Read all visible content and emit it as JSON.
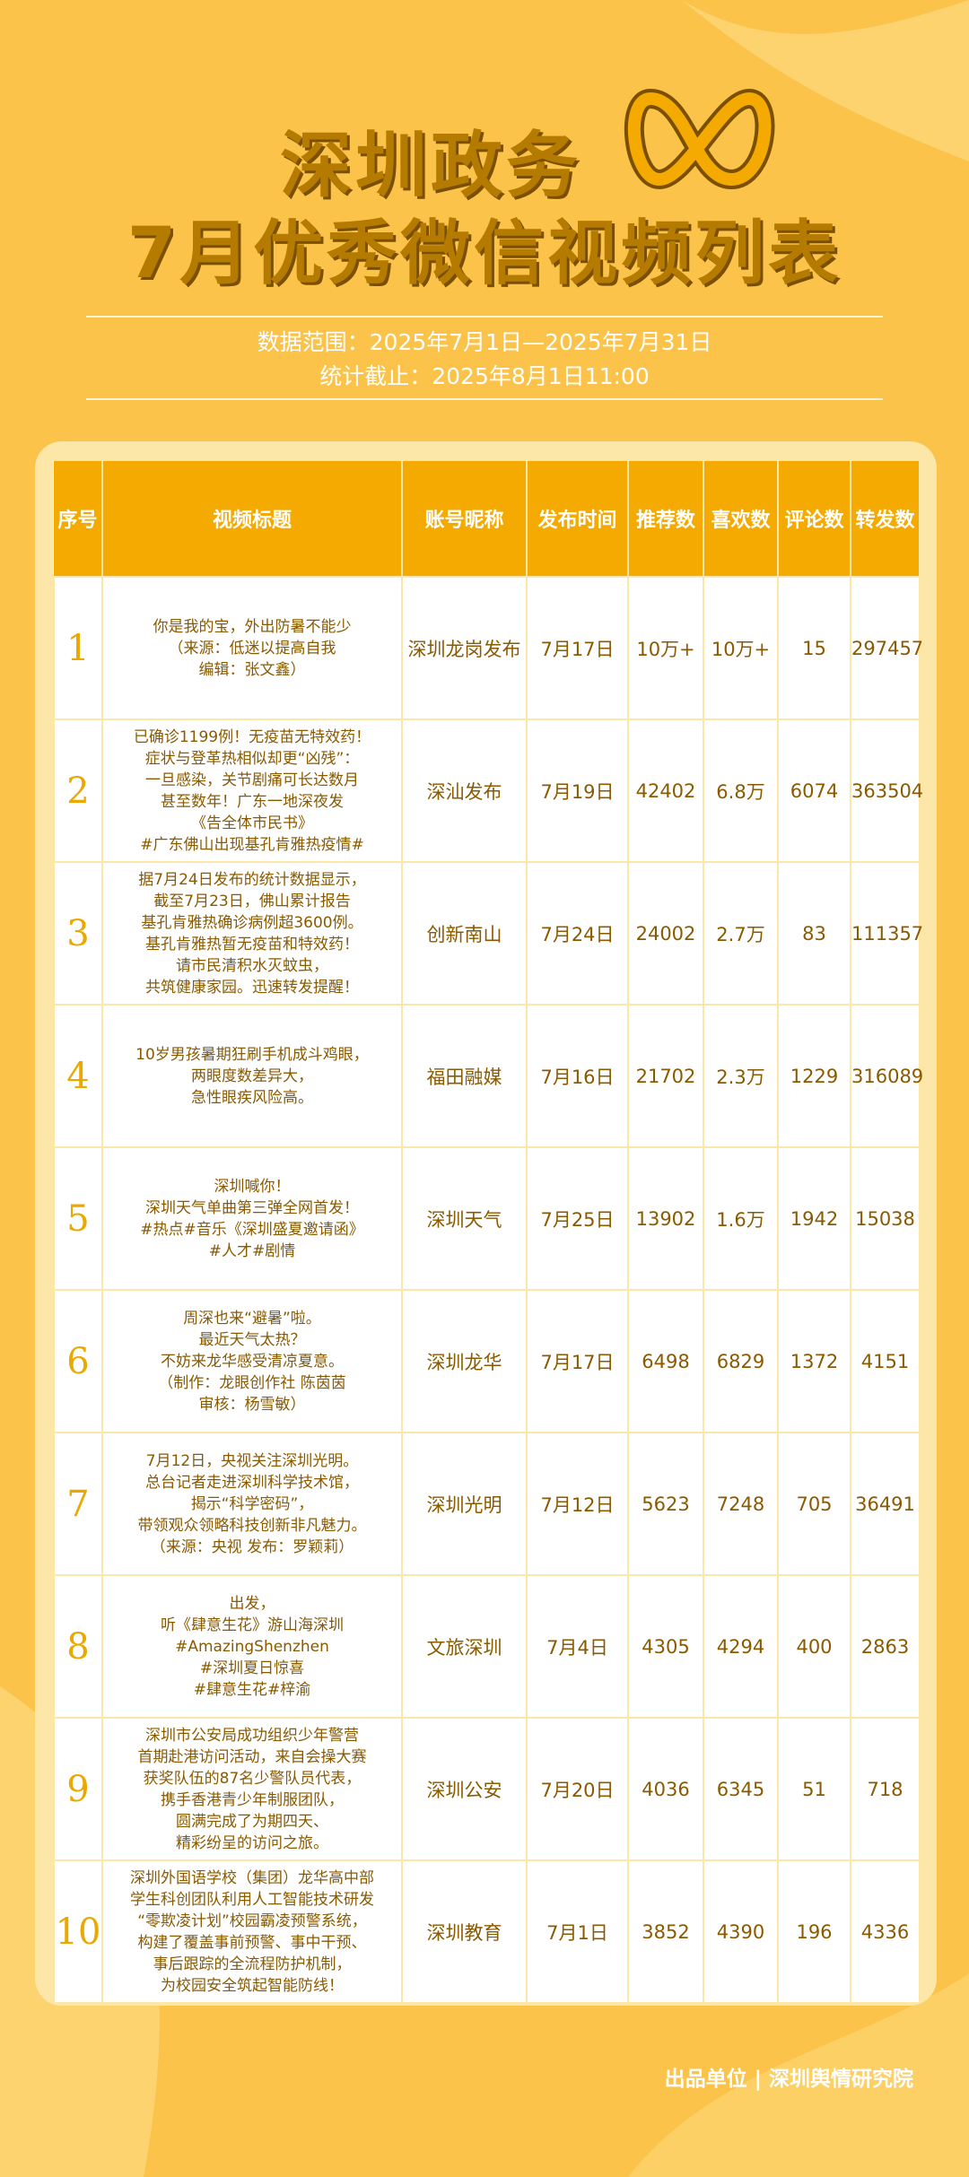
{
  "header": {
    "title_line1": "深圳政务",
    "title_line2": "7月优秀微信视频列表",
    "date_range": "数据范围：2025年7月1日—2025年7月31日",
    "cutoff": "统计截止：2025年8月1日11:00"
  },
  "table": {
    "columns": [
      "序号",
      "视频标题",
      "账号昵称",
      "发布时间",
      "推荐数",
      "喜欢数",
      "评论数",
      "转发数"
    ],
    "rows": [
      [
        1,
        "你是我的宝，外出防暑不能少\n（来源：低迷以提高自我\n编辑：张文鑫）",
        "深圳龙岗发布",
        "7月17日",
        "10万+",
        "10万+",
        15,
        297457
      ],
      [
        2,
        "已确诊1199例！无疫苗无特效药！\n症状与登革热相似却更“凶残”：\n一旦感染，关节剧痛可长达数月\n甚至数年！广东一地深夜发\n《告全体市民书》\n#广东佛山出现基孔肯雅热疫情#",
        "深汕发布",
        "7月19日",
        42402,
        "6.8万",
        6074,
        363504
      ],
      [
        3,
        "据7月24日发布的统计数据显示，\n截至7月23日，佛山累计报告\n基孔肯雅热确诊病例超3600例。\n基孔肯雅热暂无疫苗和特效药！\n请市民清积水灭蚊虫，\n共筑健康家园。迅速转发提醒！",
        "创新南山",
        "7月24日",
        24002,
        "2.7万",
        83,
        111357
      ],
      [
        4,
        "10岁男孩暑期狂刷手机成斗鸡眼，\n两眼度数差异大，\n急性眼疾风险高。",
        "福田融媒",
        "7月16日",
        21702,
        "2.3万",
        1229,
        316089
      ],
      [
        5,
        "深圳喊你！\n深圳天气单曲第三弹全网首发！\n#热点#音乐《深圳盛夏邀请函》\n#人才#剧情",
        "深圳天气",
        "7月25日",
        13902,
        "1.6万",
        1942,
        15038
      ],
      [
        6,
        "周深也来“避暑”啦。\n最近天气太热？\n不妨来龙华感受清凉夏意。\n（制作：龙眼创作社 陈茵茵\n审核：杨雪敏）",
        "深圳龙华",
        "7月17日",
        6498,
        6829,
        1372,
        4151
      ],
      [
        7,
        "7月12日，央视关注深圳光明。\n总台记者走进深圳科学技术馆，\n揭示“科学密码”，\n带领观众领略科技创新非凡魅力。\n（来源：央视 发布：罗颖莉）",
        "深圳光明",
        "7月12日",
        5623,
        7248,
        705,
        36491
      ],
      [
        8,
        "出发，\n听《肆意生花》游山海深圳\n#AmazingShenzhen\n#深圳夏日惊喜\n#肆意生花#梓渝",
        "文旅深圳",
        "7月4日",
        4305,
        4294,
        400,
        2863
      ],
      [
        9,
        "深圳市公安局成功组织少年警营\n首期赴港访问活动，来自会操大赛\n获奖队伍的87名少警队员代表，\n携手香港青少年制服团队，\n圆满完成了为期四天、\n精彩纷呈的访问之旅。",
        "深圳公安",
        "7月20日",
        4036,
        6345,
        51,
        718
      ],
      [
        10,
        "深圳外国语学校（集团）龙华高中部\n学生科创团队利用人工智能技术研发\n“零欺凌计划”校园霸凌预警系统，\n构建了覆盖事前预警、事中干预、\n事后跟踪的全流程防护机制，\n为校园安全筑起智能防线！",
        "深圳教育",
        "7月1日",
        3852,
        4390,
        196,
        4336
      ]
    ]
  },
  "footer": {
    "producer": "出品单位 | 深圳舆情研究院"
  }
}
